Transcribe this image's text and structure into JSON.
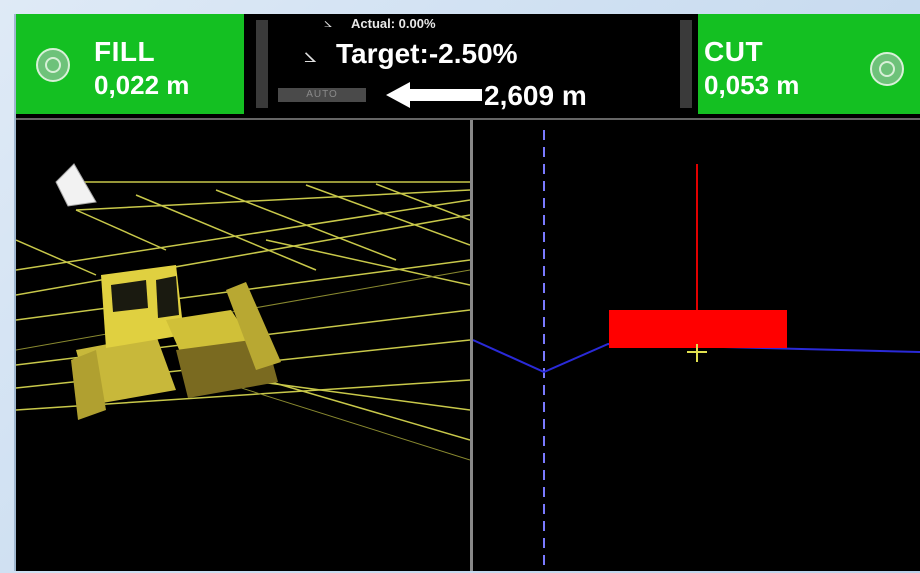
{
  "fill": {
    "label": "FILL",
    "value": "0,022 m"
  },
  "cut": {
    "label": "CUT",
    "value": "0,053 m"
  },
  "grade": {
    "actual": "Actual: 0.00%",
    "target": "Target:-2.50%",
    "auto_label": "AUTO",
    "distance": "2,609 m"
  },
  "colors": {
    "green_panel": "#14c022",
    "grade_lines": "#c8c84a",
    "design_line": "#2a2ad8",
    "blade_marker": "#ff0000",
    "dozer": "#e0d040"
  },
  "icons": {
    "fill_left": "target-icon",
    "cut_right": "target-icon",
    "slope": "slope-icon",
    "arrow": "arrow-left-icon"
  }
}
